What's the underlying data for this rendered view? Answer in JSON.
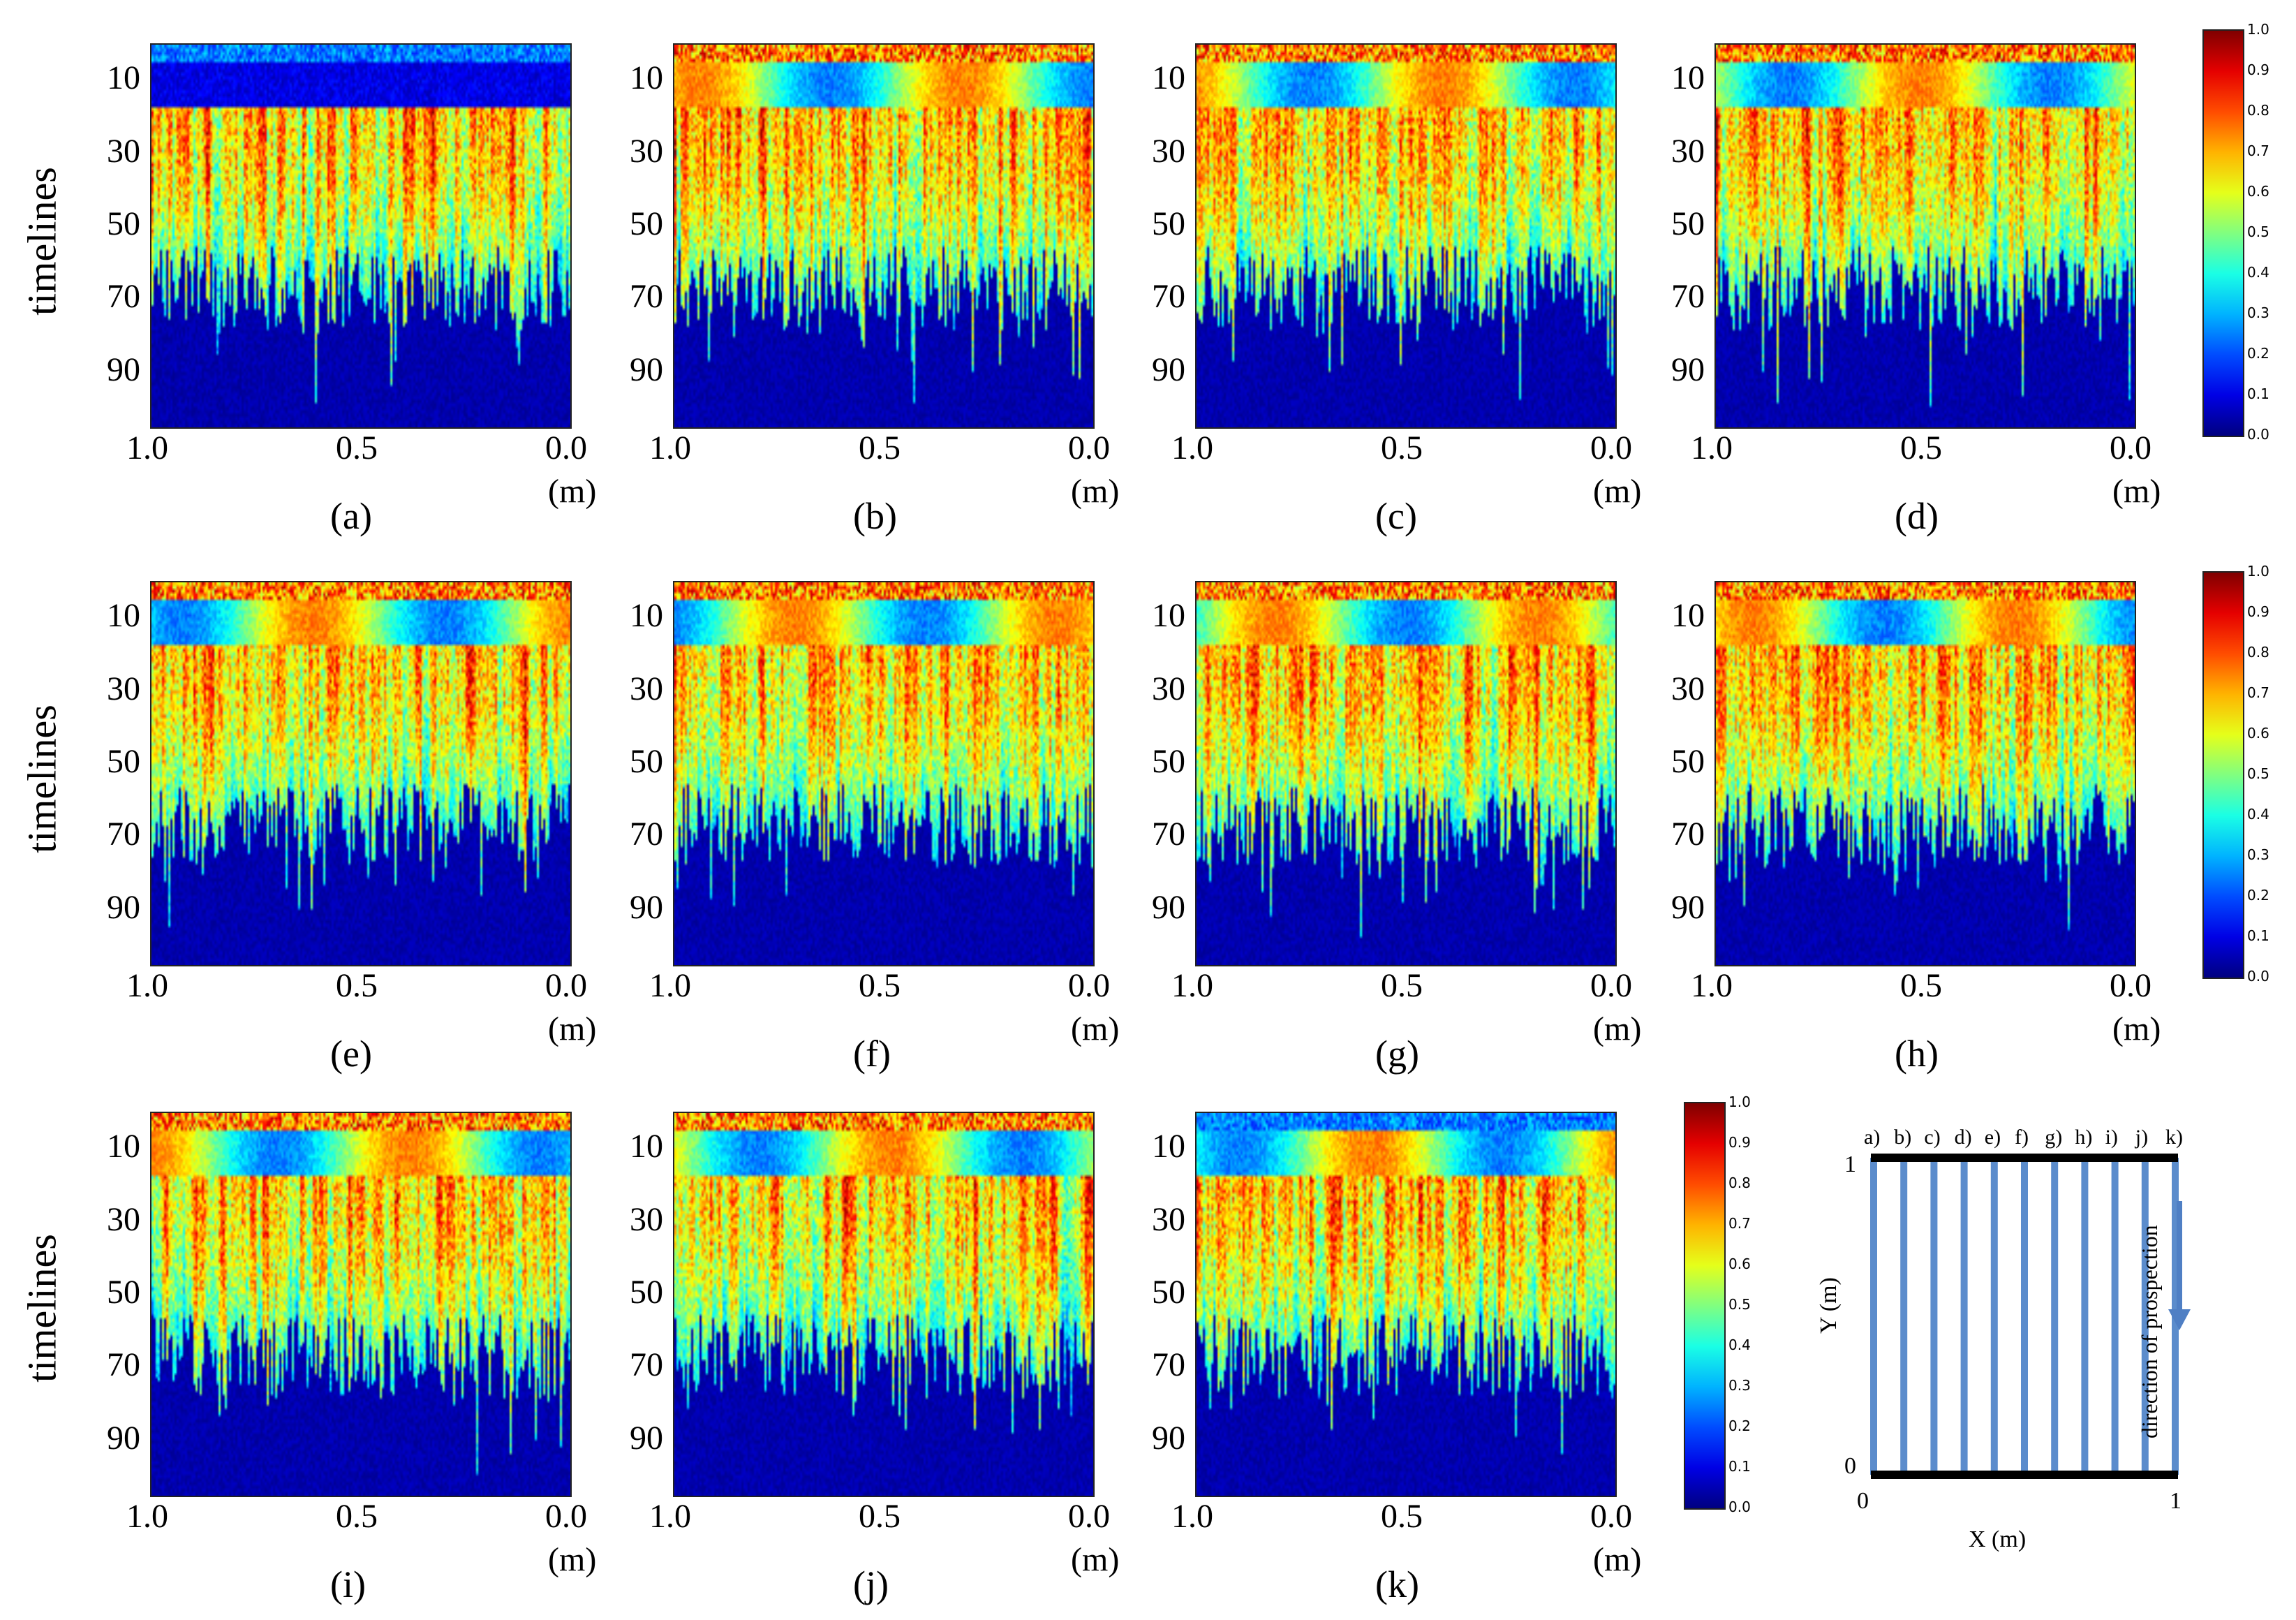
{
  "figure": {
    "y_axis_label": "timelines",
    "x_unit": "(m)"
  },
  "colorbar": {
    "ticks": [
      "1.0",
      "0.9",
      "0.8",
      "0.7",
      "0.6",
      "0.5",
      "0.4",
      "0.3",
      "0.2",
      "0.1",
      "0.0"
    ],
    "colormap": "jet"
  },
  "chart_data": [
    {
      "type": "heatmap",
      "caption": "(a)",
      "xlabel": "(m)",
      "ylabel": "timelines",
      "x_ticks": [
        "1.0",
        "0.5",
        "0.0"
      ],
      "y_ticks": [
        "10",
        "30",
        "50",
        "70",
        "90"
      ],
      "xlim": [
        1.0,
        0.0
      ],
      "ylim": [
        0,
        105
      ],
      "clim": [
        0.0,
        1.0
      ]
    },
    {
      "type": "heatmap",
      "caption": "(b)",
      "xlabel": "(m)",
      "ylabel": "timelines",
      "x_ticks": [
        "1.0",
        "0.5",
        "0.0"
      ],
      "y_ticks": [
        "10",
        "30",
        "50",
        "70",
        "90"
      ],
      "xlim": [
        1.0,
        0.0
      ],
      "ylim": [
        0,
        105
      ],
      "clim": [
        0.0,
        1.0
      ]
    },
    {
      "type": "heatmap",
      "caption": "(c)",
      "xlabel": "(m)",
      "ylabel": "timelines",
      "x_ticks": [
        "1.0",
        "0.5",
        "0.0"
      ],
      "y_ticks": [
        "10",
        "30",
        "50",
        "70",
        "90"
      ],
      "xlim": [
        1.0,
        0.0
      ],
      "ylim": [
        0,
        105
      ],
      "clim": [
        0.0,
        1.0
      ]
    },
    {
      "type": "heatmap",
      "caption": "(d)",
      "xlabel": "(m)",
      "ylabel": "timelines",
      "x_ticks": [
        "1.0",
        "0.5",
        "0.0"
      ],
      "y_ticks": [
        "10",
        "30",
        "50",
        "70",
        "90"
      ],
      "xlim": [
        1.0,
        0.0
      ],
      "ylim": [
        0,
        105
      ],
      "clim": [
        0.0,
        1.0
      ]
    },
    {
      "type": "heatmap",
      "caption": "(e)",
      "xlabel": "(m)",
      "ylabel": "timelines",
      "x_ticks": [
        "1.0",
        "0.5",
        "0.0"
      ],
      "y_ticks": [
        "10",
        "30",
        "50",
        "70",
        "90"
      ],
      "xlim": [
        1.0,
        0.0
      ],
      "ylim": [
        0,
        105
      ],
      "clim": [
        0.0,
        1.0
      ]
    },
    {
      "type": "heatmap",
      "caption": "(f)",
      "xlabel": "(m)",
      "ylabel": "timelines",
      "x_ticks": [
        "1.0",
        "0.5",
        "0.0"
      ],
      "y_ticks": [
        "10",
        "30",
        "50",
        "70",
        "90"
      ],
      "xlim": [
        1.0,
        0.0
      ],
      "ylim": [
        0,
        105
      ],
      "clim": [
        0.0,
        1.0
      ]
    },
    {
      "type": "heatmap",
      "caption": "(g)",
      "xlabel": "(m)",
      "ylabel": "timelines",
      "x_ticks": [
        "1.0",
        "0.5",
        "0.0"
      ],
      "y_ticks": [
        "10",
        "30",
        "50",
        "70",
        "90"
      ],
      "xlim": [
        1.0,
        0.0
      ],
      "ylim": [
        0,
        105
      ],
      "clim": [
        0.0,
        1.0
      ]
    },
    {
      "type": "heatmap",
      "caption": "(h)",
      "xlabel": "(m)",
      "ylabel": "timelines",
      "x_ticks": [
        "1.0",
        "0.5",
        "0.0"
      ],
      "y_ticks": [
        "10",
        "30",
        "50",
        "70",
        "90"
      ],
      "xlim": [
        1.0,
        0.0
      ],
      "ylim": [
        0,
        105
      ],
      "clim": [
        0.0,
        1.0
      ]
    },
    {
      "type": "heatmap",
      "caption": "(i)",
      "xlabel": "(m)",
      "ylabel": "timelines",
      "x_ticks": [
        "1.0",
        "0.5",
        "0.0"
      ],
      "y_ticks": [
        "10",
        "30",
        "50",
        "70",
        "90"
      ],
      "xlim": [
        1.0,
        0.0
      ],
      "ylim": [
        0,
        105
      ],
      "clim": [
        0.0,
        1.0
      ]
    },
    {
      "type": "heatmap",
      "caption": "(j)",
      "xlabel": "(m)",
      "ylabel": "timelines",
      "x_ticks": [
        "1.0",
        "0.5",
        "0.0"
      ],
      "y_ticks": [
        "10",
        "30",
        "50",
        "70",
        "90"
      ],
      "xlim": [
        1.0,
        0.0
      ],
      "ylim": [
        0,
        105
      ],
      "clim": [
        0.0,
        1.0
      ]
    },
    {
      "type": "heatmap",
      "caption": "(k)",
      "xlabel": "(m)",
      "ylabel": "timelines",
      "x_ticks": [
        "1.0",
        "0.5",
        "0.0"
      ],
      "y_ticks": [
        "10",
        "30",
        "50",
        "70",
        "90"
      ],
      "xlim": [
        1.0,
        0.0
      ],
      "ylim": [
        0,
        105
      ],
      "clim": [
        0.0,
        1.0
      ]
    }
  ],
  "diagram": {
    "profile_labels": [
      "a)",
      "b)",
      "c)",
      "d)",
      "e)",
      "f)",
      "g)",
      "h)",
      "i)",
      "j)",
      "k)"
    ],
    "y_axis_label": "Y (m)",
    "x_axis_label": "X (m)",
    "y_tick_top": "1",
    "y_tick_bottom": "0",
    "x_tick_left": "0",
    "x_tick_right": "1",
    "direction_label": "direction of prospection",
    "line_color": "#5b8ccc"
  }
}
